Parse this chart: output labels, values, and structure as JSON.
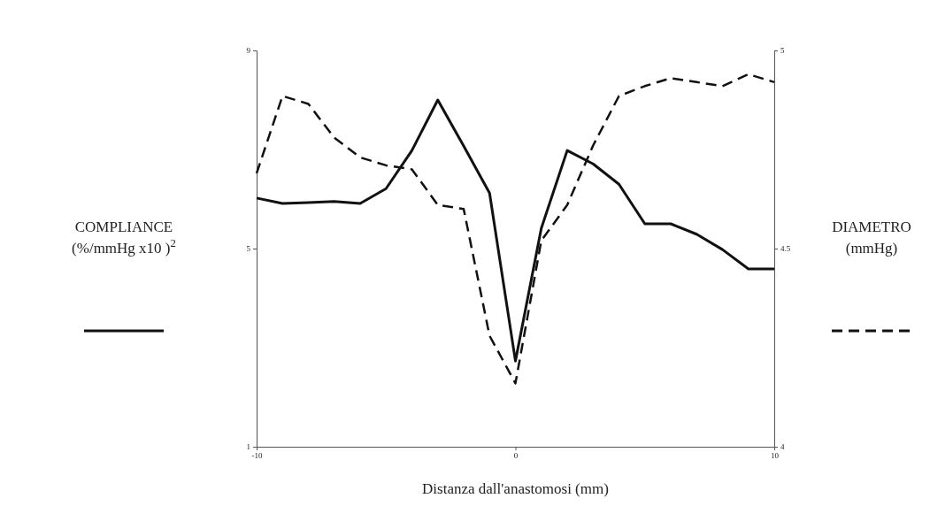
{
  "chart_data": {
    "type": "line",
    "xlabel": "Distanza dall'anastomosi (mm)",
    "ylabel": "COMPLIANCE (%/mmHg x10 )$^{2}$",
    "y2label": "DIAMETRO (mmHg)",
    "x": [
      -10,
      -9,
      -8,
      -7,
      -6,
      -5,
      -4,
      -3,
      -2,
      -1,
      0,
      1,
      2,
      3,
      4,
      5,
      6,
      7,
      8,
      9,
      10
    ],
    "xlim": [
      -10,
      10
    ],
    "xticks": [
      -10,
      0,
      10
    ],
    "ylim": [
      1,
      9
    ],
    "yticks": [
      1,
      5,
      9
    ],
    "y2lim": [
      4,
      5
    ],
    "y2ticks": [
      4,
      4.5,
      5
    ],
    "grid": false,
    "marker": "none",
    "series": [
      {
        "color": "#111111",
        "line_style": "solid",
        "values": [
          6.02,
          5.91,
          5.93,
          5.95,
          5.91,
          6.21,
          6.98,
          8.0,
          7.07,
          6.12,
          2.73,
          5.41,
          6.98,
          6.71,
          6.3,
          5.5,
          5.5,
          5.29,
          4.98,
          4.59,
          4.59
        ]
      },
      {
        "color": "#111111",
        "line_style": "dashed",
        "axis": "y2",
        "values": [
          4.69,
          4.885,
          4.865,
          4.78,
          4.73,
          4.71,
          4.7,
          4.61,
          4.6,
          4.28,
          4.16,
          4.52,
          4.61,
          4.76,
          4.885,
          4.91,
          4.93,
          4.92,
          4.91,
          4.94,
          4.92
        ]
      }
    ]
  }
}
